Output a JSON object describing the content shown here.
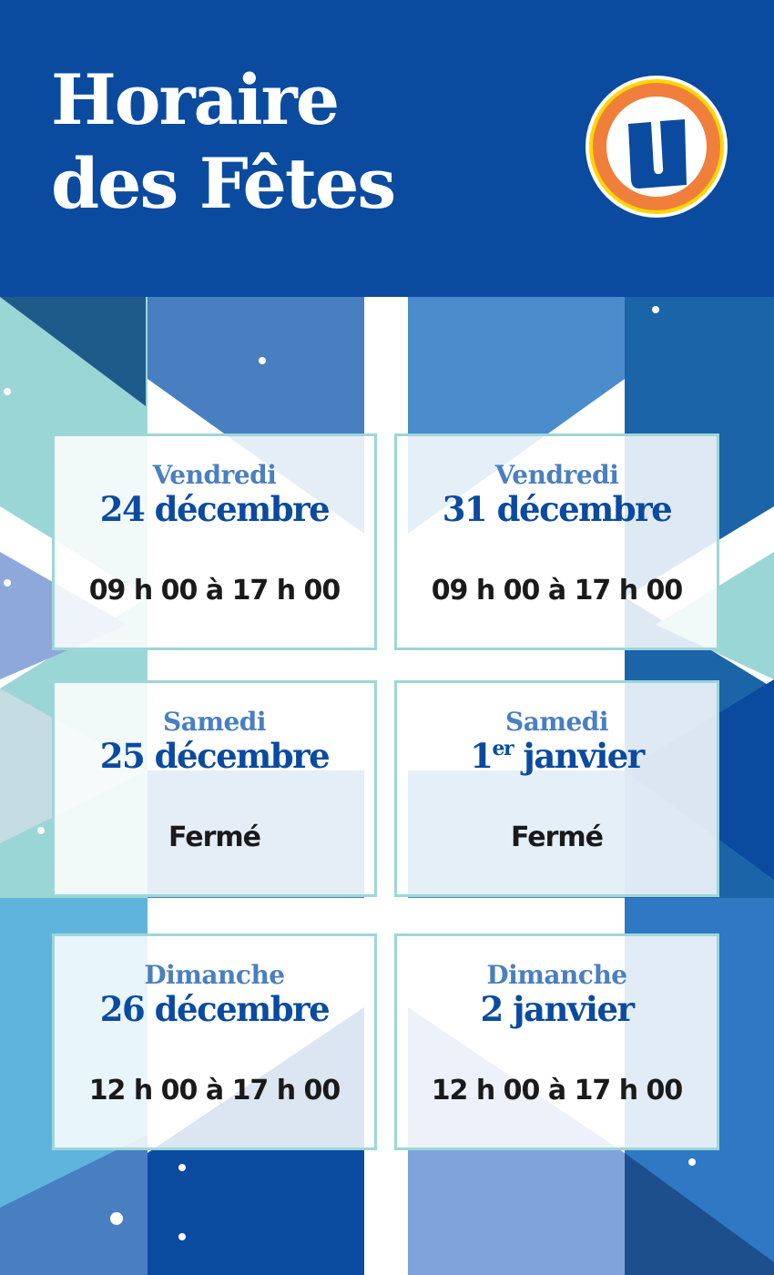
{
  "header": {
    "title_line1": "Horaire",
    "title_line2": "des Fêtes",
    "logo_letter": "U"
  },
  "colors": {
    "brand_blue": "#0a4ba0",
    "day_blue": "#4a7fc0",
    "card_border": "#9dd6d8",
    "logo_orange": "#f07f3c",
    "logo_yellow": "#ffd600"
  },
  "schedule": [
    {
      "day": "Vendredi",
      "date_num": "24",
      "date_sup": "",
      "date_month": " décembre",
      "hours": "09 h 00 à 17 h 00"
    },
    {
      "day": "Vendredi",
      "date_num": "31",
      "date_sup": "",
      "date_month": " décembre",
      "hours": "09 h 00 à 17 h 00"
    },
    {
      "day": "Samedi",
      "date_num": "25",
      "date_sup": "",
      "date_month": " décembre",
      "hours": "Fermé"
    },
    {
      "day": "Samedi",
      "date_num": "1",
      "date_sup": "er",
      "date_month": " janvier",
      "hours": "Fermé"
    },
    {
      "day": "Dimanche",
      "date_num": "26",
      "date_sup": "",
      "date_month": " décembre",
      "hours": "12 h 00 à 17 h 00"
    },
    {
      "day": "Dimanche",
      "date_num": "2",
      "date_sup": "",
      "date_month": " janvier",
      "hours": "12 h 00 à 17 h 00"
    }
  ]
}
